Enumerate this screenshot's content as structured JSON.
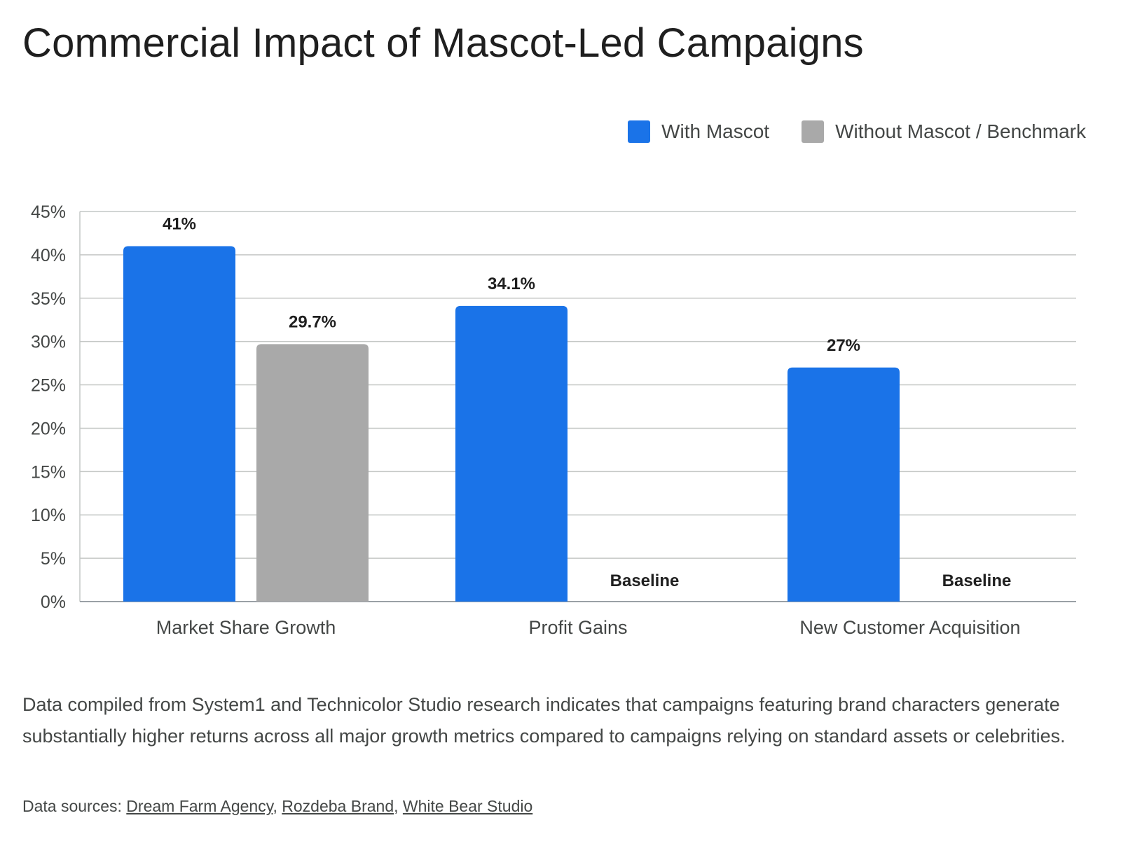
{
  "title": "Commercial Impact of Mascot-Led Campaigns",
  "legend": {
    "series1": "With Mascot",
    "series2": "Without Mascot / Benchmark"
  },
  "colors": {
    "series1": "#1a73e8",
    "series2": "#a9a9a9",
    "grid": "#c4c7c5",
    "axis_text": "#444746"
  },
  "chart_data": {
    "type": "bar",
    "categories": [
      "Market Share Growth",
      "Profit Gains",
      "New Customer Acquisition"
    ],
    "series": [
      {
        "name": "With Mascot",
        "values": [
          41,
          34.1,
          27
        ],
        "labels": [
          "41%",
          "34.1%",
          "27%"
        ]
      },
      {
        "name": "Without Mascot / Benchmark",
        "values": [
          29.7,
          0,
          0
        ],
        "labels": [
          "29.7%",
          "Baseline",
          "Baseline"
        ]
      }
    ],
    "ylim": [
      0,
      45
    ],
    "yticks": [
      0,
      5,
      10,
      15,
      20,
      25,
      30,
      35,
      40,
      45
    ],
    "ytick_labels": [
      "0%",
      "5%",
      "10%",
      "15%",
      "20%",
      "25%",
      "30%",
      "35%",
      "40%",
      "45%"
    ],
    "grid": true,
    "legend_position": "top-right"
  },
  "description": "Data compiled from System1 and Technicolor Studio research indicates that campaigns featuring brand characters generate substantially higher returns across all major growth metrics compared to campaigns relying on standard assets or celebrities.",
  "sources": {
    "prefix": "Data sources: ",
    "links": [
      "Dream Farm Agency",
      "Rozdeba Brand",
      "White Bear Studio"
    ],
    "separator": ", "
  }
}
